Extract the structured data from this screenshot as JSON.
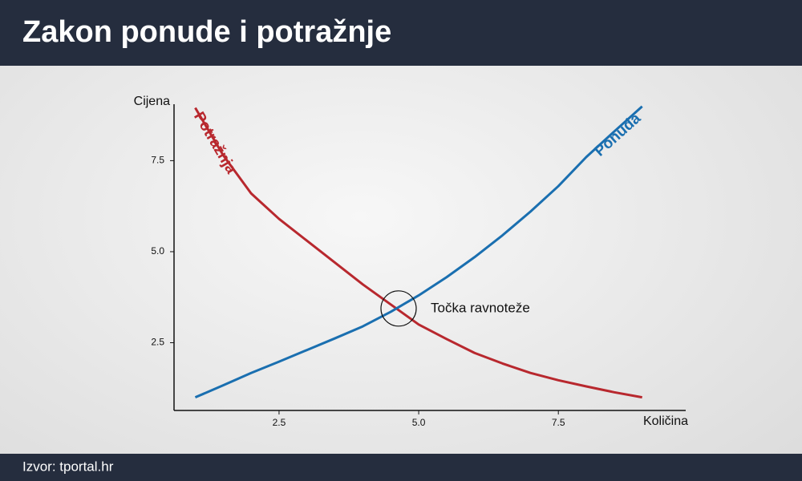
{
  "header": {
    "title": "Zakon ponude i potražnje"
  },
  "chart_data": {
    "type": "line",
    "x": [
      1,
      1.5,
      2,
      2.5,
      3,
      3.5,
      4,
      4.5,
      5,
      5.5,
      6,
      6.5,
      7,
      7.5,
      8,
      8.5,
      9
    ],
    "series": [
      {
        "name": "Potražnja",
        "color": "#b8282e",
        "values": [
          8.95,
          7.65,
          6.6,
          5.9,
          5.3,
          4.7,
          4.1,
          3.55,
          3.0,
          2.6,
          2.22,
          1.93,
          1.67,
          1.47,
          1.3,
          1.14,
          1.0
        ]
      },
      {
        "name": "Ponuda",
        "color": "#1a6fb0",
        "values": [
          1.0,
          1.33,
          1.67,
          1.98,
          2.3,
          2.62,
          2.95,
          3.35,
          3.8,
          4.3,
          4.85,
          5.45,
          6.1,
          6.8,
          7.6,
          8.3,
          8.99
        ]
      }
    ],
    "x_label": "Količina",
    "y_label": "Cijena",
    "xlim": [
      0.62,
      9.78
    ],
    "ylim": [
      0.64,
      9.05
    ],
    "xticks": [
      2.5,
      {
        "value": 5,
        "label": "5.0"
      },
      7.5
    ],
    "yticks": [
      2.5,
      {
        "value": 5,
        "label": "5.0"
      },
      7.5
    ],
    "annotation": {
      "text": "Točka ravnoteže",
      "x": 4.64,
      "y": 3.44
    }
  },
  "footer": {
    "source": "Izvor: tportal.hr"
  }
}
